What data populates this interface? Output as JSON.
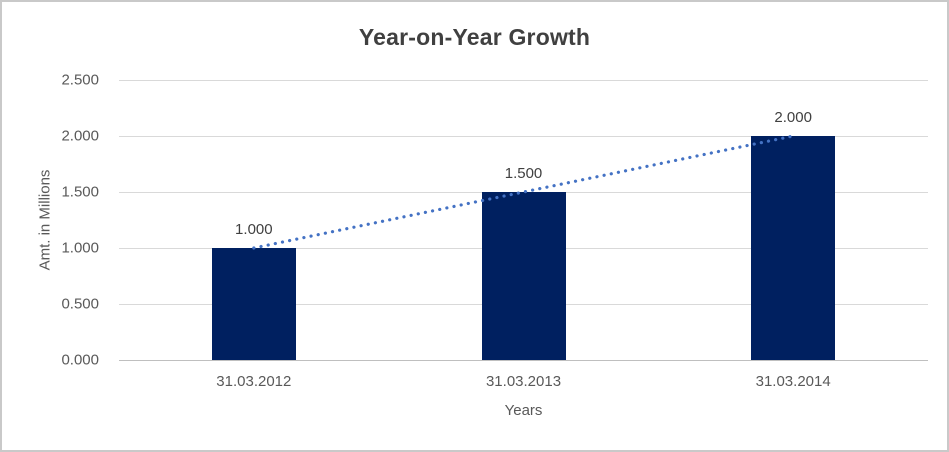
{
  "chart_data": {
    "type": "bar",
    "title": "Year-on-Year Growth",
    "xlabel": "Years",
    "ylabel": "Amt. in Millions",
    "categories": [
      "31.03.2012",
      "31.03.2013",
      "31.03.2014"
    ],
    "values": [
      1.0,
      1.5,
      2.0
    ],
    "data_labels": [
      "1.000",
      "1.500",
      "2.000"
    ],
    "y_ticks": [
      "0.000",
      "0.500",
      "1.000",
      "1.500",
      "2.000",
      "2.500"
    ],
    "ylim": [
      0,
      2.5
    ],
    "grid": true,
    "legend": "none",
    "bar_color": "#002060",
    "grid_color": "#d9d9d9",
    "axis_line_color": "#bfbfbf",
    "title_color": "#404040",
    "tick_color": "#595959",
    "trendline": {
      "type": "linear",
      "style": "dotted",
      "color": "#4472c4"
    }
  }
}
